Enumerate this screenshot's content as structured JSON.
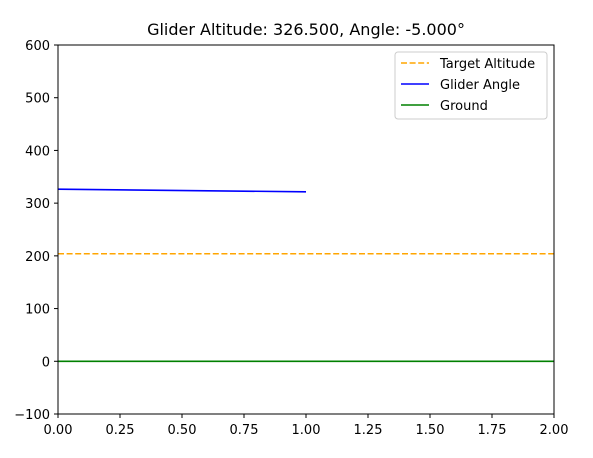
{
  "chart_data": {
    "type": "line",
    "title": "Glider Altitude: 326.500, Angle: -5.000°",
    "xlabel": "",
    "ylabel": "",
    "xlim": [
      0,
      2
    ],
    "ylim": [
      -100,
      600
    ],
    "xticks": [
      0,
      0.25,
      0.5,
      0.75,
      1.0,
      1.25,
      1.5,
      1.75,
      2.0
    ],
    "xtick_labels": [
      "0.00",
      "0.25",
      "0.50",
      "0.75",
      "1.00",
      "1.25",
      "1.50",
      "1.75",
      "2.00"
    ],
    "yticks": [
      -100,
      0,
      100,
      200,
      300,
      400,
      500,
      600
    ],
    "ytick_labels": [
      "−100",
      "0",
      "100",
      "200",
      "300",
      "400",
      "500",
      "600"
    ],
    "grid": false,
    "legend_position": "upper right",
    "series": [
      {
        "name": "Target Altitude",
        "color": "#ffa500",
        "style": "dashed",
        "x": [
          0,
          2
        ],
        "y": [
          204,
          204
        ]
      },
      {
        "name": "Glider Angle",
        "color": "#0000ff",
        "style": "solid",
        "x": [
          0,
          1
        ],
        "y": [
          326.5,
          321.5
        ]
      },
      {
        "name": "Ground",
        "color": "#008000",
        "style": "solid",
        "x": [
          0,
          2
        ],
        "y": [
          0,
          0
        ]
      }
    ]
  }
}
